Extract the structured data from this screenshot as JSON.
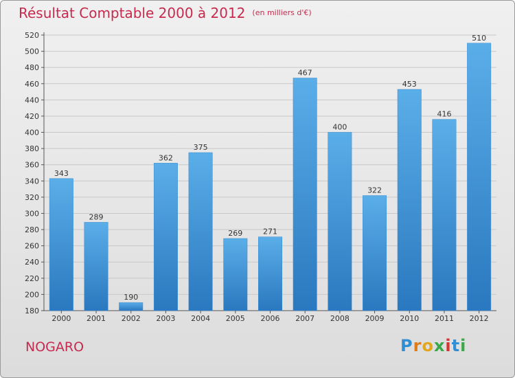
{
  "title": "Résultat Comptable 2000 à 2012",
  "subtitle": "(en milliers d'€)",
  "commune": "NOGARO",
  "logo": {
    "letters": [
      "P",
      "r",
      "o",
      "x",
      "i",
      "t",
      "i"
    ],
    "colors": [
      "#2f8fd6",
      "#e07b1a",
      "#e0a81a",
      "#3aa84a",
      "#d6342e",
      "#2f8fd6",
      "#3aa84a"
    ]
  },
  "colors": {
    "bar": "#4fa3e0",
    "bar_dark": "#2a78bf",
    "text_accent": "#c62a4e"
  },
  "chart_data": {
    "type": "bar",
    "title": "Résultat Comptable 2000 à 2012",
    "subtitle": "(en milliers d'€)",
    "categories": [
      "2000",
      "2001",
      "2002",
      "2003",
      "2004",
      "2005",
      "2006",
      "2007",
      "2008",
      "2009",
      "2010",
      "2011",
      "2012"
    ],
    "values": [
      343,
      289,
      190,
      362,
      375,
      269,
      271,
      467,
      400,
      322,
      453,
      416,
      510
    ],
    "ylim": [
      180,
      520
    ],
    "yticks": [
      180,
      200,
      220,
      240,
      260,
      280,
      300,
      320,
      340,
      360,
      380,
      400,
      420,
      440,
      460,
      480,
      500,
      520
    ],
    "grid": true,
    "legend": "none"
  }
}
